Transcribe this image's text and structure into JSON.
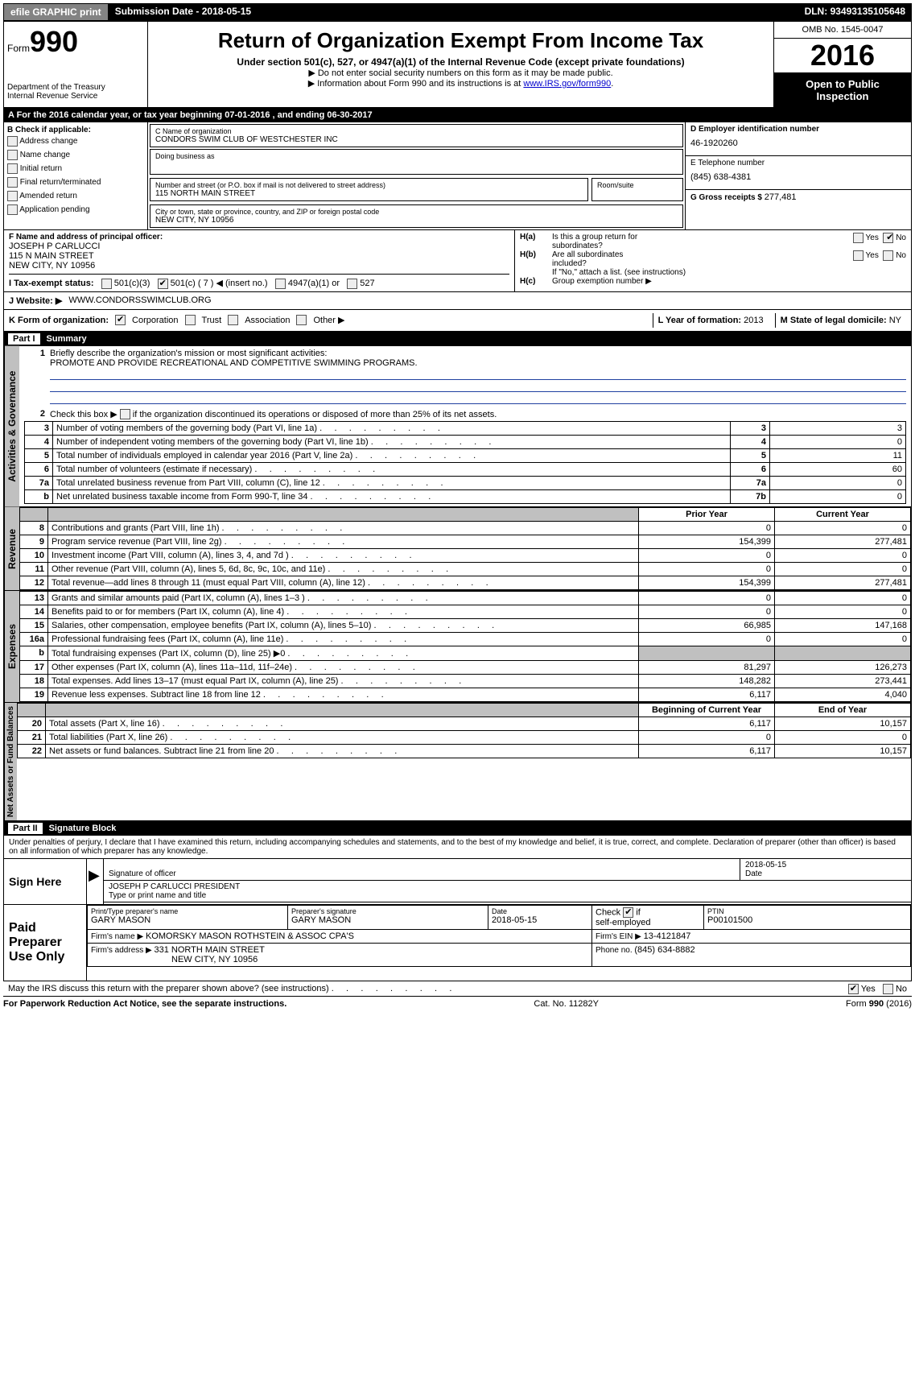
{
  "topbar": {
    "efile": "efile GRAPHIC print",
    "subdate_label": "Submission Date - ",
    "subdate": "2018-05-15",
    "dln_label": "DLN: ",
    "dln": "93493135105648"
  },
  "header": {
    "form_label": "Form",
    "form_no": "990",
    "dept1": "Department of the Treasury",
    "dept2": "Internal Revenue Service",
    "title": "Return of Organization Exempt From Income Tax",
    "sub": "Under section 501(c), 527, or 4947(a)(1) of the Internal Revenue Code (except private foundations)",
    "note1": "Do not enter social security numbers on this form as it may be made public.",
    "note2_a": "Information about Form 990 and its instructions is at ",
    "note2_link": "www.IRS.gov/form990",
    "omb": "OMB No. 1545-0047",
    "year": "2016",
    "open1": "Open to Public",
    "open2": "Inspection"
  },
  "row_a": {
    "text_a": "A   For the 2016 calendar year, or tax year beginning ",
    "begin": "07-01-2016",
    "text_b": " , and ending ",
    "end": "06-30-2017"
  },
  "col_b": {
    "head": "B Check if applicable:",
    "items": [
      "Address change",
      "Name change",
      "Initial return",
      "Final return/terminated",
      "Amended return",
      "Application pending"
    ]
  },
  "col_c": {
    "name_lbl": "C Name of organization",
    "name": "CONDORS SWIM CLUB OF WESTCHESTER INC",
    "dba_lbl": "Doing business as",
    "street_lbl": "Number and street (or P.O. box if mail is not delivered to street address)",
    "room_lbl": "Room/suite",
    "street": "115 NORTH MAIN STREET",
    "city_lbl": "City or town, state or province, country, and ZIP or foreign postal code",
    "city": "NEW CITY, NY  10956"
  },
  "col_d": {
    "d_lbl": "D Employer identification number",
    "ein": "46-1920260",
    "e_lbl": "E Telephone number",
    "phone": "(845) 638-4381",
    "g_lbl": "G Gross receipts $ ",
    "gross": "277,481"
  },
  "fblock": {
    "f_lbl": "F Name and address of principal officer:",
    "f1": "JOSEPH P CARLUCCI",
    "f2": "115 N MAIN STREET",
    "f3": "NEW CITY, NY  10956"
  },
  "hblock": {
    "ha": "H(a)",
    "ha_q1": "Is this a group return for",
    "ha_q2": "subordinates?",
    "hb": "H(b)",
    "hb_q1": "Are all subordinates",
    "hb_q2": "included?",
    "hb_note": "If \"No,\" attach a list. (see instructions)",
    "hc": "H(c)",
    "hc_q": "Group exemption number ▶",
    "yes": "Yes",
    "no": "No"
  },
  "irow": {
    "lbl": "I    Tax-exempt status:",
    "o1": "501(c)(3)",
    "o2": "501(c) ( 7 ) ◀ (insert no.)",
    "o3": "4947(a)(1) or",
    "o4": "527"
  },
  "jrow": {
    "lbl": "J   Website: ▶",
    "val": "WWW.CONDORSSWIMCLUB.ORG"
  },
  "krow": {
    "lbl": "K Form of organization:",
    "o1": "Corporation",
    "o2": "Trust",
    "o3": "Association",
    "o4": "Other ▶",
    "l_lbl": "L Year of formation: ",
    "l_val": "2013",
    "m_lbl": "M State of legal domicile: ",
    "m_val": "NY"
  },
  "part1": {
    "label": "Part I",
    "title": "Summary"
  },
  "summary": {
    "q1_lbl": "1",
    "q1": "Briefly describe the organization's mission or most significant activities:",
    "q1_ans": "PROMOTE AND PROVIDE RECREATIONAL AND COMPETITIVE SWIMMING PROGRAMS.",
    "q2_lbl": "2",
    "q2": "Check this box ▶        if the organization discontinued its operations or disposed of more than 25% of its net assets.",
    "rows_ag": [
      {
        "n": "3",
        "t": "Number of voting members of the governing body (Part VI, line 1a)",
        "b": "3",
        "v": "3"
      },
      {
        "n": "4",
        "t": "Number of independent voting members of the governing body (Part VI, line 1b)",
        "b": "4",
        "v": "0"
      },
      {
        "n": "5",
        "t": "Total number of individuals employed in calendar year 2016 (Part V, line 2a)",
        "b": "5",
        "v": "11"
      },
      {
        "n": "6",
        "t": "Total number of volunteers (estimate if necessary)",
        "b": "6",
        "v": "60"
      },
      {
        "n": "7a",
        "t": "Total unrelated business revenue from Part VIII, column (C), line 12",
        "b": "7a",
        "v": "0"
      },
      {
        "n": "b",
        "t": "Net unrelated business taxable income from Form 990-T, line 34",
        "b": "7b",
        "v": "0"
      }
    ],
    "col_prior": "Prior Year",
    "col_curr": "Current Year",
    "revenue": [
      {
        "n": "8",
        "t": "Contributions and grants (Part VIII, line 1h)",
        "p": "0",
        "c": "0"
      },
      {
        "n": "9",
        "t": "Program service revenue (Part VIII, line 2g)",
        "p": "154,399",
        "c": "277,481"
      },
      {
        "n": "10",
        "t": "Investment income (Part VIII, column (A), lines 3, 4, and 7d )",
        "p": "0",
        "c": "0"
      },
      {
        "n": "11",
        "t": "Other revenue (Part VIII, column (A), lines 5, 6d, 8c, 9c, 10c, and 11e)",
        "p": "0",
        "c": "0"
      },
      {
        "n": "12",
        "t": "Total revenue—add lines 8 through 11 (must equal Part VIII, column (A), line 12)",
        "p": "154,399",
        "c": "277,481"
      }
    ],
    "expenses": [
      {
        "n": "13",
        "t": "Grants and similar amounts paid (Part IX, column (A), lines 1–3 )",
        "p": "0",
        "c": "0"
      },
      {
        "n": "14",
        "t": "Benefits paid to or for members (Part IX, column (A), line 4)",
        "p": "0",
        "c": "0"
      },
      {
        "n": "15",
        "t": "Salaries, other compensation, employee benefits (Part IX, column (A), lines 5–10)",
        "p": "66,985",
        "c": "147,168"
      },
      {
        "n": "16a",
        "t": "Professional fundraising fees (Part IX, column (A), line 11e)",
        "p": "0",
        "c": "0"
      },
      {
        "n": "b",
        "t": "Total fundraising expenses (Part IX, column (D), line 25) ▶0",
        "p": "",
        "c": "",
        "shade": true
      },
      {
        "n": "17",
        "t": "Other expenses (Part IX, column (A), lines 11a–11d, 11f–24e)",
        "p": "81,297",
        "c": "126,273"
      },
      {
        "n": "18",
        "t": "Total expenses. Add lines 13–17 (must equal Part IX, column (A), line 25)",
        "p": "148,282",
        "c": "273,441"
      },
      {
        "n": "19",
        "t": "Revenue less expenses. Subtract line 18 from line 12",
        "p": "6,117",
        "c": "4,040"
      }
    ],
    "col_beg": "Beginning of Current Year",
    "col_end": "End of Year",
    "netassets": [
      {
        "n": "20",
        "t": "Total assets (Part X, line 16)",
        "p": "6,117",
        "c": "10,157"
      },
      {
        "n": "21",
        "t": "Total liabilities (Part X, line 26)",
        "p": "0",
        "c": "0"
      },
      {
        "n": "22",
        "t": "Net assets or fund balances. Subtract line 21 from line 20",
        "p": "6,117",
        "c": "10,157"
      }
    ],
    "vlabels": {
      "ag": "Activities & Governance",
      "rev": "Revenue",
      "exp": "Expenses",
      "na": "Net Assets or Fund Balances"
    }
  },
  "part2": {
    "label": "Part II",
    "title": "Signature Block"
  },
  "penalties": "Under penalties of perjury, I declare that I have examined this return, including accompanying schedules and statements, and to the best of my knowledge and belief, it is true, correct, and complete. Declaration of preparer (other than officer) is based on all information of which preparer has any knowledge.",
  "sign": {
    "here": "Sign Here",
    "sig_officer": "Signature of officer",
    "date_lbl": "Date",
    "date": "2018-05-15",
    "name": "JOSEPH P CARLUCCI  PRESIDENT",
    "name_lbl": "Type or print name and title"
  },
  "paid": {
    "title": "Paid Preparer Use Only",
    "pt_name_lbl": "Print/Type preparer's name",
    "pt_name": "GARY MASON",
    "sig_lbl": "Preparer's signature",
    "sig": "GARY MASON",
    "date_lbl": "Date",
    "date": "2018-05-15",
    "check_lbl_a": "Check",
    "check_lbl_b": "if",
    "self": "self-employed",
    "ptin_lbl": "PTIN",
    "ptin": "P00101500",
    "firm_name_lbl": "Firm's name    ▶ ",
    "firm_name": "KOMORSKY MASON ROTHSTEIN & ASSOC CPA'S",
    "firm_ein_lbl": "Firm's EIN ▶ ",
    "firm_ein": "13-4121847",
    "firm_addr_lbl": "Firm's address ▶ ",
    "firm_addr1": "331 NORTH MAIN STREET",
    "firm_addr2": "NEW CITY, NY  10956",
    "phone_lbl": "Phone no. ",
    "phone": "(845) 634-8882"
  },
  "discuss": {
    "q": "May the IRS discuss this return with the preparer shown above? (see instructions)",
    "yes": "Yes",
    "no": "No"
  },
  "footer": {
    "left": "For Paperwork Reduction Act Notice, see the separate instructions.",
    "mid": "Cat. No. 11282Y",
    "right_a": "Form ",
    "right_b": "990",
    "right_c": " (2016)"
  }
}
